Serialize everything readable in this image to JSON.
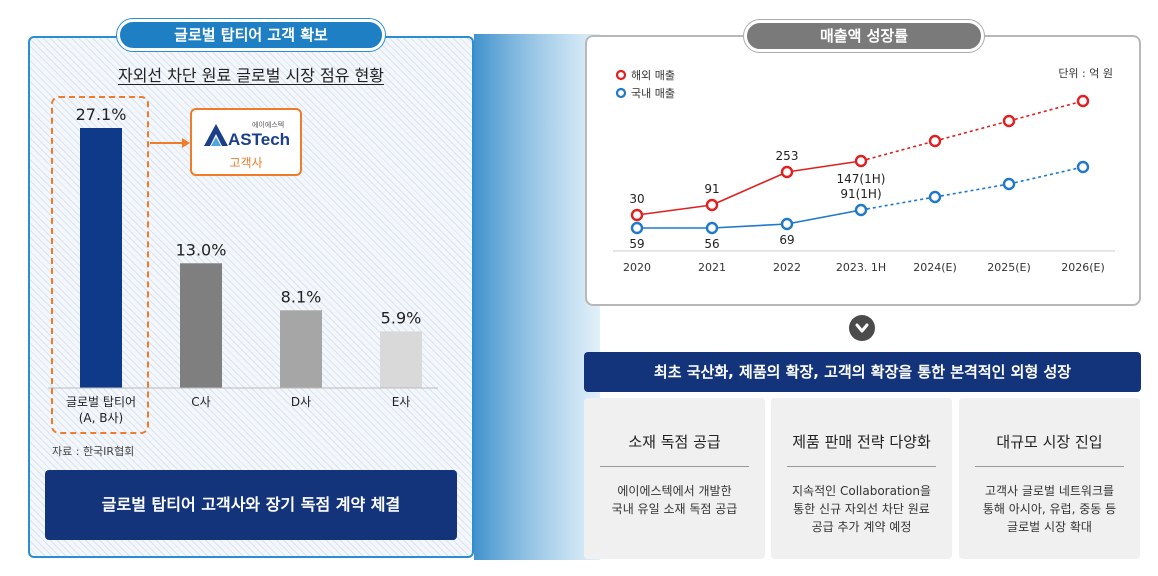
{
  "left": {
    "pill_title": "글로벌 탑티어 고객 확보",
    "subtitle": "자외선 차단 원료 글로벌 시장 점유 현황",
    "source": "자료 : 한국IR협회",
    "banner": "글로벌 탑티어 고객사와 장기 독점 계약 체결",
    "customer_logo": {
      "small": "에이에스텍",
      "name": "ASTech",
      "caption": "고객사"
    }
  },
  "right": {
    "pill_title": "매출액 성장률",
    "unit": "단위 : 억 원",
    "banner": "최초 국산화, 제품의 확장, 고객의 확장을 통한 본격적인 외형 성장",
    "cards": [
      {
        "title": "소재 독점 공급",
        "lines": [
          "에이에스텍에서 개발한",
          "국내 유일 소재 독점 공급"
        ]
      },
      {
        "title": "제품 판매 전략 다양화",
        "lines": [
          "지속적인 Collaboration을",
          "통한 신규 자외선 차단 원료",
          "공급 추가 계약 예정"
        ]
      },
      {
        "title": "대규모 시장 진입",
        "lines": [
          "고객사 글로벌 네트워크를",
          "통해 아시아, 유럽, 중동 등",
          "글로벌 시장 확대"
        ]
      }
    ]
  },
  "colors": {
    "top_tier": "#0f3a8a",
    "c": "#7f7f7f",
    "d": "#a6a6a6",
    "e": "#d9d9d9",
    "overseas": "#e02020",
    "domestic": "#1f78c8",
    "accent_orange": "#f07c2a"
  },
  "chart_data": [
    {
      "type": "bar",
      "title": "자외선 차단 원료 글로벌 시장 점유 현황",
      "categories": [
        "글로벌 탑티어\n(A, B사)",
        "C사",
        "D사",
        "E사"
      ],
      "values": [
        27.1,
        13.0,
        8.1,
        5.9
      ],
      "value_labels": [
        "27.1%",
        "13.0%",
        "8.1%",
        "5.9%"
      ],
      "ylim": [
        0,
        28
      ]
    },
    {
      "type": "line",
      "categories": [
        "2020",
        "2021",
        "2022",
        "2023. 1H",
        "2024(E)",
        "2025(E)",
        "2026(E)"
      ],
      "series": [
        {
          "name": "해외 매출",
          "values": [
            30,
            91,
            253,
            147,
            null,
            null,
            null
          ],
          "labels": [
            "30",
            "91",
            "253",
            "147(1H)",
            "",
            "",
            ""
          ]
        },
        {
          "name": "국내 매출",
          "values": [
            59,
            56,
            69,
            91,
            null,
            null,
            null
          ],
          "labels": [
            "59",
            "56",
            "69",
            "91(1H)",
            "",
            "",
            ""
          ]
        }
      ],
      "legend_position": "top-left",
      "unit": "단위 : 억 원",
      "projected_from": "2023. 1H"
    }
  ]
}
